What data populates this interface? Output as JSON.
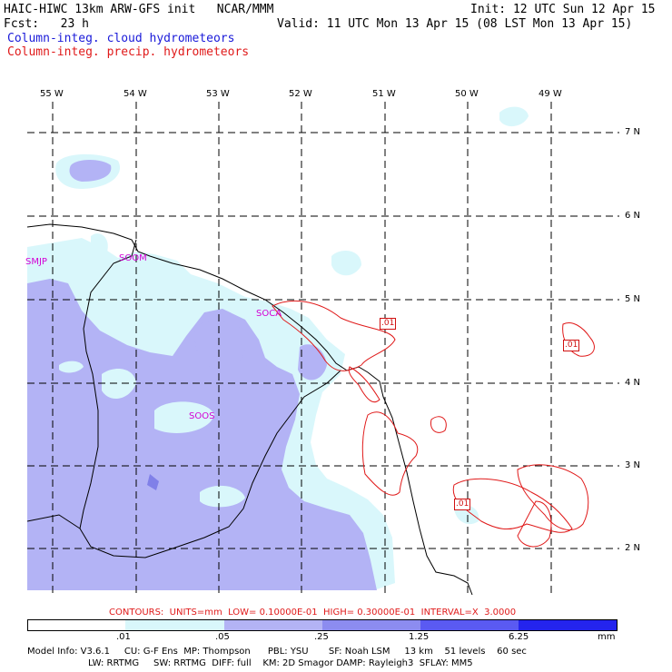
{
  "header": {
    "model_line": "HAIC-HIWC 13km ARW-GFS init   NCAR/MMM",
    "init_line": "Init: 12 UTC Sun 12 Apr 15",
    "fcst_line": "Fcst:   23 h",
    "valid_line": "Valid: 11 UTC Mon 13 Apr 15 (08 LST Mon 13 Apr 15)",
    "field1": "Column-integ. cloud hydrometeors",
    "field2": "Column-integ. precip. hydrometeors"
  },
  "axes": {
    "lon_labels": [
      "55 W",
      "54 W",
      "53 W",
      "52 W",
      "51 W",
      "50 W",
      "49 W"
    ],
    "lat_labels": [
      "7 N",
      "6 N",
      "5 N",
      "4 N",
      "3 N",
      "2 N"
    ]
  },
  "stations": [
    "SMJP",
    "SOOM",
    "SOCA",
    "SOOS"
  ],
  "contour_labels": [
    ".01",
    ".01",
    ".01"
  ],
  "contour_info": "CONTOURS:  UNITS=mm  LOW= 0.10000E-01  HIGH= 0.30000E-01  INTERVAL=X  3.0000",
  "colorbar": {
    "levels": [
      ".01",
      ".05",
      ".25",
      "1.25",
      "6.25"
    ],
    "units": "mm",
    "colors": [
      "#ffffff",
      "#d9f7fb",
      "#b3b3f5",
      "#8c8cf0",
      "#5a5af2",
      "#2424ee"
    ]
  },
  "footer": {
    "line1": "Model Info: V3.6.1     CU: G-F Ens  MP: Thompson      PBL: YSU       SF: Noah LSM     13 km    51 levels    60 sec",
    "line2": "LW: RRTMG     SW: RRTMG  DIFF: full    KM: 2D Smagor DAMP: Rayleigh3  SFLAY: MM5"
  },
  "colors": {
    "cloud_light": "#d9f7fb",
    "cloud_mid": "#b3b3f5",
    "cloud_dark": "#8c8cf0",
    "precip_contour": "#e01a1a",
    "station": "#d400d4"
  }
}
